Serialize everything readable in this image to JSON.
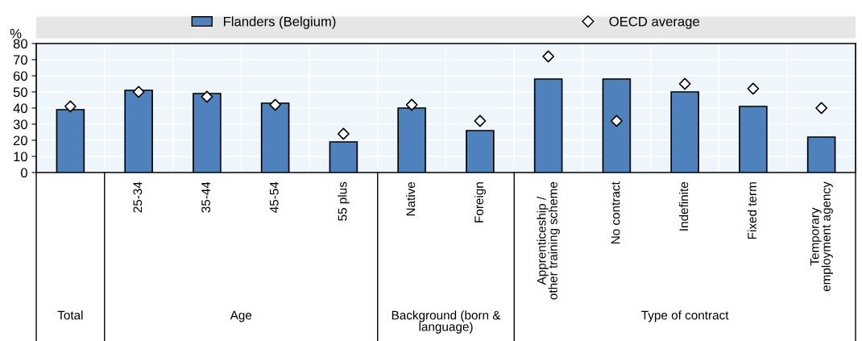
{
  "chart_data": {
    "type": "bar",
    "ylabel": "%",
    "categories": [
      null,
      "25-34",
      "35-44",
      "45-54",
      "55 plus",
      "Native",
      "Foreign",
      "Apprenticeship /\nother training scheme",
      "No contract",
      "Indefinite",
      "Fixed term",
      "Temporary\nemployment agency"
    ],
    "series": [
      {
        "name": "Flanders (Belgium)",
        "color": "#4f81bd",
        "values": [
          39,
          51,
          49,
          43,
          19,
          40,
          26,
          58,
          58,
          50,
          41,
          22
        ]
      },
      {
        "name": "OECD average",
        "type": "scatter",
        "marker": "diamond",
        "color": "#ffffff",
        "values": [
          41,
          50,
          47,
          42,
          24,
          42,
          32,
          72,
          32,
          55,
          52,
          40
        ]
      }
    ],
    "annotations": [
      "Total",
      "Age",
      "Background (born &\nlanguage)",
      "Type of contract"
    ],
    "ylim": [
      0,
      80
    ],
    "yticks": [
      0,
      10,
      20,
      30,
      40,
      50,
      60,
      70,
      80
    ],
    "grid": true,
    "legend": "top"
  }
}
